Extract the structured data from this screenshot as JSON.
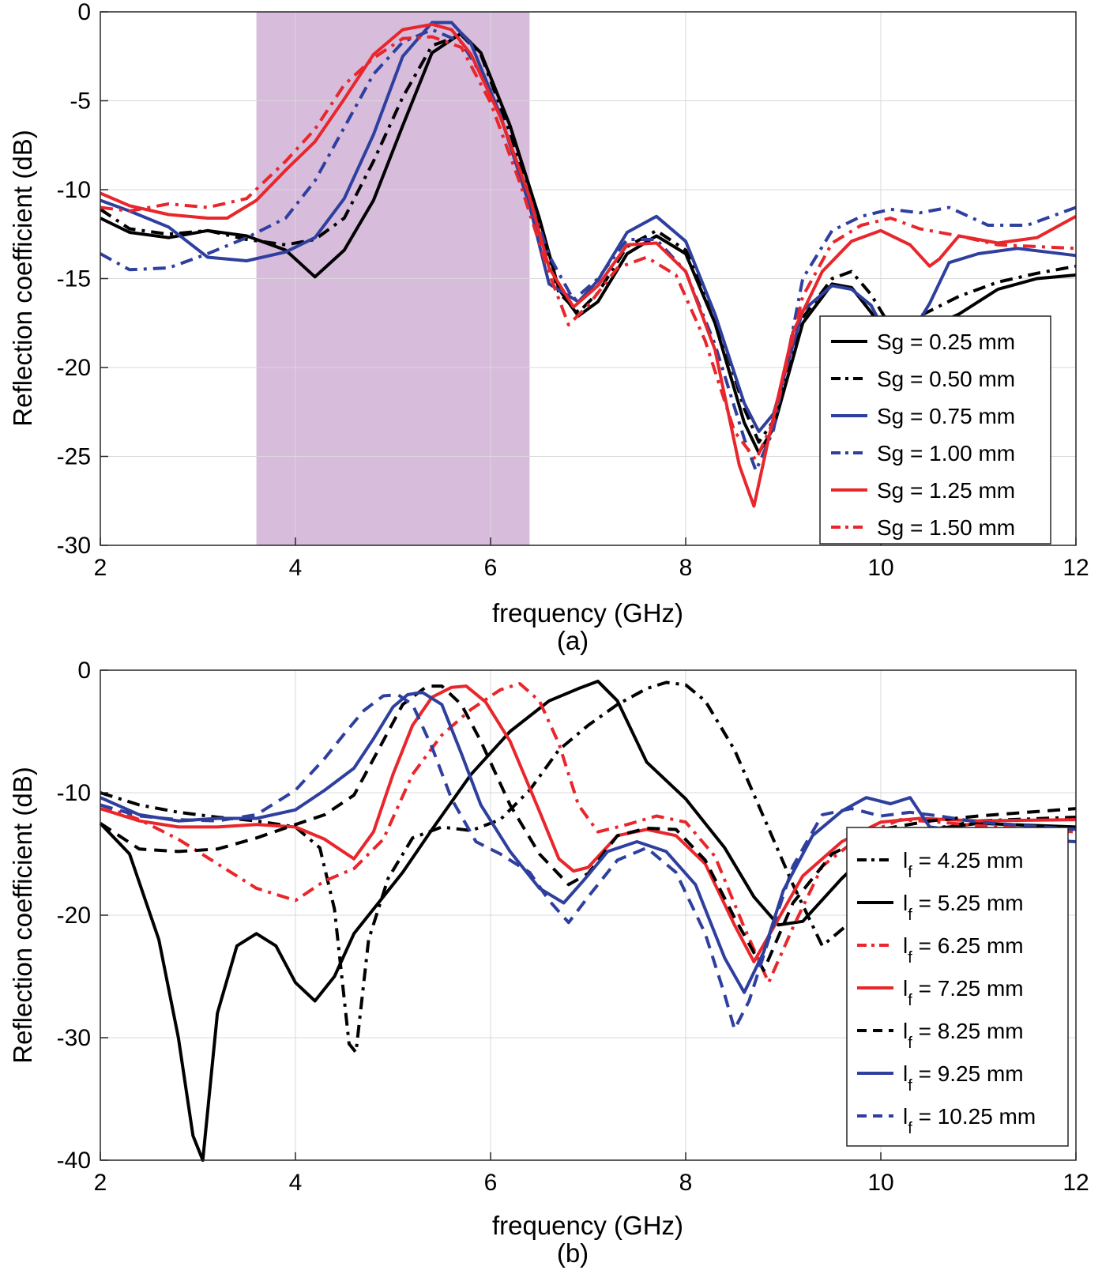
{
  "chart_data": [
    {
      "id": "a",
      "type": "line",
      "caption": "(a)",
      "xlabel": "frequency (GHz)",
      "ylabel": "Reflection coefficient (dB)",
      "xlim": [
        2,
        12
      ],
      "ylim": [
        -30,
        0
      ],
      "xticks": [
        2,
        4,
        6,
        8,
        10,
        12
      ],
      "yticks": [
        0,
        -5,
        -10,
        -15,
        -20,
        -25,
        -30
      ],
      "grid": true,
      "legend_position": "bottom-right",
      "shaded_band": {
        "x": [
          3.6,
          6.4
        ],
        "color": "#d8bcdc"
      },
      "series": [
        {
          "label_prefix": "Sg = ",
          "label_value": "0.25 mm",
          "color": "#000000",
          "dash": "solid",
          "x": [
            2,
            2.3,
            2.7,
            3.1,
            3.5,
            3.9,
            4.2,
            4.5,
            4.8,
            5.1,
            5.4,
            5.7,
            5.9,
            6.2,
            6.5,
            6.7,
            6.9,
            7.1,
            7.4,
            7.7,
            8,
            8.3,
            8.6,
            8.75,
            8.9,
            9.2,
            9.5,
            9.7,
            9.9,
            10.1,
            10.4,
            10.8,
            11.2,
            11.6,
            12
          ],
          "y": [
            -11.6,
            -12.4,
            -12.7,
            -12.3,
            -12.6,
            -13.4,
            -14.9,
            -13.4,
            -10.6,
            -6.4,
            -2.3,
            -1.2,
            -2.3,
            -6.4,
            -11.6,
            -15.6,
            -17.1,
            -16.3,
            -13.6,
            -12.6,
            -13.6,
            -17.5,
            -23.1,
            -24.8,
            -23.4,
            -17.5,
            -15.3,
            -15.5,
            -16.9,
            -18.5,
            -18.0,
            -17.0,
            -15.6,
            -15.0,
            -14.8
          ]
        },
        {
          "label_prefix": "Sg = ",
          "label_value": "0.50 mm",
          "color": "#000000",
          "dash": "dashdot",
          "x": [
            2,
            2.3,
            2.7,
            3.1,
            3.5,
            3.9,
            4.2,
            4.5,
            4.8,
            5.1,
            5.4,
            5.7,
            5.9,
            6.2,
            6.5,
            6.7,
            6.9,
            7.1,
            7.4,
            7.7,
            8,
            8.3,
            8.6,
            8.75,
            8.9,
            9.2,
            9.5,
            9.7,
            9.9,
            10.1,
            10.4,
            10.8,
            11.2,
            11.6,
            12
          ],
          "y": [
            -11.1,
            -12.2,
            -12.5,
            -12.3,
            -12.8,
            -13.1,
            -12.8,
            -11.6,
            -8.4,
            -4.8,
            -1.9,
            -1.3,
            -2.4,
            -6.8,
            -11.9,
            -15.8,
            -16.9,
            -15.8,
            -13.2,
            -12.3,
            -13.4,
            -17.0,
            -22.3,
            -24.2,
            -23.0,
            -17.2,
            -15.0,
            -14.6,
            -15.9,
            -17.7,
            -17.1,
            -16.0,
            -15.2,
            -14.7,
            -14.3
          ]
        },
        {
          "label_prefix": "Sg = ",
          "label_value": "0.75 mm",
          "color": "#2e3f9e",
          "dash": "solid",
          "x": [
            2,
            2.3,
            2.7,
            3.1,
            3.5,
            3.9,
            4.2,
            4.5,
            4.8,
            5.1,
            5.4,
            5.6,
            5.8,
            6.1,
            6.4,
            6.6,
            6.9,
            7.1,
            7.4,
            7.7,
            8,
            8.3,
            8.6,
            8.75,
            8.9,
            9.2,
            9.5,
            9.7,
            9.9,
            10.1,
            10.3,
            10.5,
            10.7,
            11,
            11.4,
            12
          ],
          "y": [
            -10.6,
            -11.2,
            -12.1,
            -13.8,
            -14.0,
            -13.5,
            -12.7,
            -10.5,
            -6.9,
            -2.5,
            -0.6,
            -0.6,
            -1.8,
            -5.8,
            -10.9,
            -15.3,
            -16.3,
            -15.1,
            -12.4,
            -11.5,
            -12.9,
            -17.0,
            -22.0,
            -23.6,
            -22.6,
            -16.8,
            -15.4,
            -15.6,
            -16.5,
            -18.6,
            -18.2,
            -16.4,
            -14.1,
            -13.6,
            -13.3,
            -13.7
          ]
        },
        {
          "label_prefix": "Sg = ",
          "label_value": "1.00 mm",
          "color": "#2e3f9e",
          "dash": "dashdot",
          "x": [
            2,
            2.3,
            2.7,
            3.1,
            3.5,
            3.9,
            4.2,
            4.5,
            4.8,
            5.1,
            5.4,
            5.7,
            6.0,
            6.3,
            6.6,
            6.85,
            7.1,
            7.4,
            7.7,
            8,
            8.3,
            8.6,
            8.72,
            8.9,
            9.2,
            9.5,
            9.8,
            10.1,
            10.4,
            10.7,
            11.1,
            11.5,
            12
          ],
          "y": [
            -13.6,
            -14.5,
            -14.4,
            -13.6,
            -12.7,
            -11.6,
            -9.5,
            -6.5,
            -3.5,
            -1.7,
            -1.0,
            -1.7,
            -4.4,
            -8.9,
            -13.7,
            -16.2,
            -15.0,
            -12.8,
            -12.8,
            -14.6,
            -18.7,
            -24.0,
            -25.8,
            -23.5,
            -15.0,
            -12.3,
            -11.5,
            -11.1,
            -11.3,
            -11.0,
            -12.0,
            -12.0,
            -11.0
          ]
        },
        {
          "label_prefix": "Sg = ",
          "label_value": "1.25 mm",
          "color": "#e8262b",
          "dash": "solid",
          "x": [
            2,
            2.3,
            2.7,
            3.1,
            3.3,
            3.6,
            3.9,
            4.2,
            4.5,
            4.8,
            5.1,
            5.4,
            5.6,
            5.8,
            6.1,
            6.4,
            6.6,
            6.85,
            7.1,
            7.4,
            7.7,
            8,
            8.3,
            8.55,
            8.7,
            8.85,
            9.1,
            9.4,
            9.7,
            10.0,
            10.3,
            10.5,
            10.6,
            10.8,
            11.2,
            11.6,
            12
          ],
          "y": [
            -10.2,
            -10.9,
            -11.4,
            -11.6,
            -11.6,
            -10.6,
            -8.9,
            -7.3,
            -4.9,
            -2.4,
            -1.0,
            -0.7,
            -1.0,
            -2.4,
            -5.9,
            -10.4,
            -14.4,
            -16.6,
            -15.4,
            -13.1,
            -13.0,
            -14.6,
            -19.0,
            -25.5,
            -27.8,
            -24.0,
            -18.0,
            -14.6,
            -12.9,
            -12.3,
            -13.1,
            -14.3,
            -13.9,
            -12.6,
            -13.0,
            -12.7,
            -11.5
          ]
        },
        {
          "label_prefix": "Sg = ",
          "label_value": "1.50 mm",
          "color": "#e8262b",
          "dash": "dashdot",
          "x": [
            2,
            2.3,
            2.7,
            3.1,
            3.5,
            3.9,
            4.2,
            4.5,
            4.8,
            5.1,
            5.4,
            5.7,
            6.0,
            6.3,
            6.6,
            6.8,
            7.0,
            7.3,
            7.6,
            7.9,
            8.2,
            8.5,
            8.72,
            8.9,
            9.2,
            9.5,
            9.8,
            10.1,
            10.4,
            10.8,
            11.2,
            11.6,
            12
          ],
          "y": [
            -11.0,
            -11.2,
            -10.8,
            -11.0,
            -10.5,
            -8.4,
            -6.6,
            -4.1,
            -2.6,
            -1.5,
            -1.4,
            -2.0,
            -5.1,
            -9.6,
            -14.7,
            -17.6,
            -16.5,
            -14.4,
            -13.8,
            -14.8,
            -18.5,
            -23.6,
            -25.2,
            -23.0,
            -16.0,
            -13.0,
            -12.0,
            -11.6,
            -12.2,
            -12.6,
            -13.1,
            -13.2,
            -13.3
          ]
        }
      ]
    },
    {
      "id": "b",
      "type": "line",
      "caption": "(b)",
      "xlabel": "frequency (GHz)",
      "ylabel": "Reflection coefficient (dB)",
      "xlim": [
        2,
        12
      ],
      "ylim": [
        -40,
        0
      ],
      "xticks": [
        2,
        4,
        6,
        8,
        10,
        12
      ],
      "yticks": [
        0,
        -10,
        -20,
        -30,
        -40
      ],
      "grid": true,
      "legend_position": "bottom-right",
      "series": [
        {
          "label_prefix": "l",
          "label_sub": "f",
          "label_value": " = 4.25 mm",
          "color": "#000000",
          "dash": "dashdot",
          "x": [
            2,
            2.4,
            2.8,
            3.2,
            3.6,
            4.0,
            4.25,
            4.4,
            4.55,
            4.62,
            4.75,
            4.95,
            5.2,
            5.5,
            5.8,
            6.1,
            6.4,
            6.7,
            7.0,
            7.3,
            7.6,
            7.8,
            8.0,
            8.2,
            8.5,
            8.8,
            9.1,
            9.4,
            9.7,
            10.0,
            10.5,
            11,
            12
          ],
          "y": [
            -10.0,
            -11.0,
            -11.6,
            -12.0,
            -12.3,
            -12.8,
            -14.5,
            -19.5,
            -30.5,
            -31.2,
            -22.0,
            -17.0,
            -13.7,
            -12.8,
            -13.1,
            -12.2,
            -9.8,
            -6.5,
            -4.5,
            -2.8,
            -1.5,
            -1.0,
            -1.2,
            -2.5,
            -6.5,
            -12.0,
            -17.5,
            -22.5,
            -20.5,
            -15.5,
            -13.0,
            -12.3,
            -12.0
          ]
        },
        {
          "label_prefix": "l",
          "label_sub": "f",
          "label_value": " = 5.25 mm",
          "color": "#000000",
          "dash": "solid",
          "x": [
            2,
            2.3,
            2.6,
            2.8,
            2.95,
            3.05,
            3.2,
            3.4,
            3.6,
            3.8,
            4.0,
            4.2,
            4.4,
            4.6,
            4.8,
            5.1,
            5.4,
            5.8,
            6.2,
            6.6,
            6.9,
            7.1,
            7.3,
            7.6,
            8.0,
            8.4,
            8.7,
            8.95,
            9.2,
            9.6,
            10.0,
            10.5,
            11,
            12
          ],
          "y": [
            -12.5,
            -15.0,
            -22.0,
            -30.0,
            -38.0,
            -40.0,
            -28.0,
            -22.5,
            -21.5,
            -22.5,
            -25.5,
            -27.0,
            -25.0,
            -21.5,
            -19.5,
            -16.5,
            -13.0,
            -8.5,
            -5.0,
            -2.5,
            -1.5,
            -0.9,
            -2.5,
            -7.5,
            -10.5,
            -14.5,
            -18.5,
            -20.8,
            -20.5,
            -17.0,
            -14.0,
            -13.0,
            -12.5,
            -12.8
          ]
        },
        {
          "label_prefix": "l",
          "label_sub": "f",
          "label_value": " = 6.25 mm",
          "color": "#e8262b",
          "dash": "dashdot",
          "x": [
            2,
            2.4,
            2.8,
            3.2,
            3.6,
            4.0,
            4.3,
            4.6,
            4.9,
            5.2,
            5.5,
            5.8,
            6.1,
            6.3,
            6.5,
            6.7,
            6.9,
            7.1,
            7.4,
            7.7,
            8.0,
            8.3,
            8.6,
            8.85,
            9.1,
            9.4,
            9.8,
            10.2,
            10.6,
            11,
            12
          ],
          "y": [
            -11.0,
            -12.2,
            -13.8,
            -15.8,
            -17.8,
            -18.8,
            -17.2,
            -16.2,
            -13.8,
            -8.5,
            -5.3,
            -3.2,
            -1.6,
            -1.1,
            -2.5,
            -6.0,
            -11.0,
            -13.2,
            -12.6,
            -11.9,
            -12.4,
            -15.2,
            -21.0,
            -25.5,
            -21.0,
            -16.0,
            -13.5,
            -12.2,
            -12.4,
            -12.7,
            -13.2
          ]
        },
        {
          "label_prefix": "l",
          "label_sub": "f",
          "label_value": " = 7.25 mm",
          "color": "#e8262b",
          "dash": "solid",
          "x": [
            2,
            2.4,
            2.8,
            3.2,
            3.6,
            4.0,
            4.3,
            4.6,
            4.8,
            5.0,
            5.2,
            5.4,
            5.6,
            5.75,
            5.95,
            6.2,
            6.5,
            6.7,
            6.85,
            7.0,
            7.3,
            7.6,
            7.9,
            8.2,
            8.5,
            8.7,
            8.9,
            9.2,
            9.6,
            10.0,
            10.4,
            11,
            12
          ],
          "y": [
            -11.3,
            -12.3,
            -12.8,
            -12.8,
            -12.6,
            -12.8,
            -13.8,
            -15.4,
            -13.2,
            -8.5,
            -4.5,
            -2.2,
            -1.4,
            -1.3,
            -2.6,
            -5.8,
            -11.5,
            -15.4,
            -16.4,
            -16.1,
            -13.5,
            -13.0,
            -13.5,
            -15.8,
            -20.8,
            -23.8,
            -21.0,
            -16.8,
            -14.0,
            -12.4,
            -12.1,
            -12.3,
            -12.2
          ]
        },
        {
          "label_prefix": "l",
          "label_sub": "f",
          "label_value": " = 8.25 mm",
          "color": "#000000",
          "dash": "dashed",
          "x": [
            2,
            2.4,
            2.8,
            3.2,
            3.6,
            4.0,
            4.3,
            4.6,
            4.85,
            5.1,
            5.35,
            5.5,
            5.7,
            5.9,
            6.2,
            6.5,
            6.8,
            7.0,
            7.3,
            7.6,
            7.9,
            8.2,
            8.5,
            8.8,
            9.1,
            9.5,
            10.0,
            10.5,
            11,
            12
          ],
          "y": [
            -12.5,
            -14.6,
            -14.8,
            -14.6,
            -13.7,
            -12.6,
            -11.8,
            -10.2,
            -6.5,
            -2.8,
            -1.3,
            -1.3,
            -2.8,
            -5.8,
            -11.0,
            -15.0,
            -17.5,
            -16.6,
            -13.5,
            -12.9,
            -13.0,
            -15.5,
            -20.2,
            -24.5,
            -19.0,
            -15.0,
            -13.0,
            -12.3,
            -11.9,
            -11.3
          ]
        },
        {
          "label_prefix": "l",
          "label_sub": "f",
          "label_value": " = 9.25 mm",
          "color": "#2e3f9e",
          "dash": "solid",
          "x": [
            2,
            2.4,
            2.8,
            3.2,
            3.6,
            4.0,
            4.3,
            4.6,
            4.8,
            5.0,
            5.15,
            5.3,
            5.5,
            5.7,
            5.9,
            6.2,
            6.5,
            6.75,
            6.95,
            7.2,
            7.5,
            7.8,
            8.1,
            8.4,
            8.6,
            8.8,
            9.0,
            9.3,
            9.6,
            9.85,
            10.1,
            10.3,
            10.5,
            11,
            11.5,
            12
          ],
          "y": [
            -10.4,
            -11.8,
            -12.3,
            -12.1,
            -12.1,
            -11.4,
            -9.8,
            -8.0,
            -5.6,
            -3.0,
            -2.0,
            -1.8,
            -2.8,
            -6.8,
            -11.0,
            -14.8,
            -17.8,
            -19.0,
            -17.2,
            -14.8,
            -14.0,
            -14.8,
            -17.5,
            -23.5,
            -26.3,
            -23.0,
            -18.0,
            -13.5,
            -11.5,
            -10.4,
            -10.9,
            -10.4,
            -12.8,
            -13.3,
            -13.8,
            -14.0
          ]
        },
        {
          "label_prefix": "l",
          "label_sub": "f",
          "label_value": " = 10.25 mm",
          "color": "#2e3f9e",
          "dash": "dashed",
          "x": [
            2,
            2.4,
            2.8,
            3.2,
            3.6,
            4.0,
            4.3,
            4.5,
            4.7,
            4.9,
            5.05,
            5.2,
            5.4,
            5.6,
            5.85,
            6.1,
            6.4,
            6.6,
            6.8,
            7.0,
            7.3,
            7.6,
            7.9,
            8.2,
            8.4,
            8.5,
            8.65,
            8.85,
            9.1,
            9.4,
            9.7,
            10.0,
            10.3,
            10.6,
            11,
            12
          ],
          "y": [
            -11.0,
            -11.9,
            -12.2,
            -12.3,
            -11.8,
            -9.8,
            -7.2,
            -5.2,
            -3.3,
            -2.1,
            -2.0,
            -2.8,
            -6.3,
            -10.5,
            -14.0,
            -15.0,
            -16.5,
            -18.8,
            -20.6,
            -18.5,
            -15.5,
            -14.5,
            -16.5,
            -21.5,
            -26.5,
            -29.3,
            -27.0,
            -22.0,
            -16.0,
            -11.8,
            -11.3,
            -11.9,
            -11.6,
            -11.9,
            -12.4,
            -13.0
          ]
        }
      ]
    }
  ]
}
